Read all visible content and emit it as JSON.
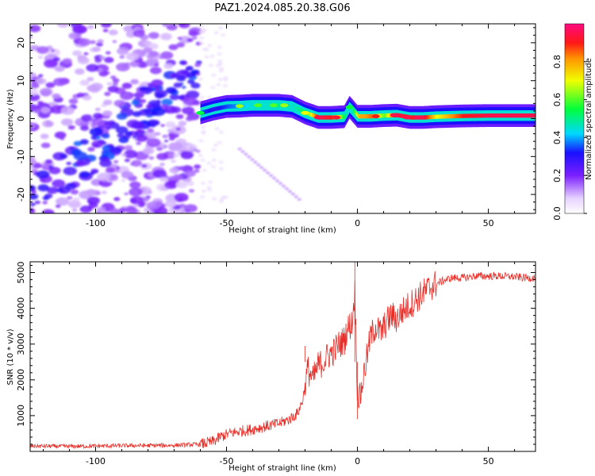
{
  "title": "PAZ1.2024.085.20.38.G06",
  "chart_data": [
    {
      "type": "heatmap",
      "xlabel": "Height of straight line (km)",
      "ylabel": "Frequency (Hz)",
      "xlim": [
        -125,
        68
      ],
      "ylim": [
        -25,
        25
      ],
      "x_ticks": [
        -100,
        -50,
        0,
        50
      ],
      "y_ticks": [
        -20,
        -10,
        0,
        10,
        20
      ],
      "colorbar": {
        "label": "Normalized spectral amplitude",
        "ticks": [
          0.0,
          0.2,
          0.4,
          0.6,
          0.8
        ],
        "range": [
          0,
          1
        ]
      },
      "ridge_frequency_track": {
        "x": [
          -60,
          -55,
          -50,
          -45,
          -40,
          -35,
          -30,
          -25,
          -20,
          -15,
          -10,
          -5,
          -3,
          0,
          5,
          10,
          15,
          20,
          25,
          30,
          40,
          50,
          60,
          68
        ],
        "freq": [
          1.5,
          2.5,
          3.2,
          3.3,
          3.5,
          3.5,
          3.5,
          3.2,
          1.5,
          0.3,
          0.3,
          0.5,
          3.0,
          0.6,
          0.6,
          0.8,
          0.9,
          0.3,
          0.3,
          0.5,
          0.7,
          0.8,
          0.8,
          0.8
        ],
        "amplitude": [
          0.35,
          0.3,
          0.35,
          0.4,
          0.45,
          0.45,
          0.5,
          0.45,
          0.55,
          0.95,
          0.9,
          0.5,
          0.4,
          0.75,
          0.85,
          0.6,
          0.95,
          0.9,
          0.95,
          0.7,
          0.9,
          0.95,
          0.95,
          0.95
        ]
      }
    },
    {
      "type": "line",
      "xlabel": "Height of straight line (km)",
      "ylabel": "SNR (10 * v/v)",
      "xlim": [
        -125,
        68
      ],
      "ylim": [
        0,
        5300
      ],
      "x_ticks": [
        -100,
        -50,
        0,
        50
      ],
      "y_ticks": [
        1000,
        2000,
        3000,
        4000,
        5000
      ],
      "color": "#e8302a",
      "x": [
        -125,
        -110,
        -90,
        -70,
        -60,
        -55,
        -52,
        -48,
        -45,
        -40,
        -35,
        -30,
        -26,
        -23,
        -21,
        -19,
        -17,
        -15,
        -13,
        -11,
        -9,
        -7,
        -5,
        -4,
        -2,
        -1,
        0,
        1,
        3,
        5,
        7,
        9,
        11,
        13,
        15,
        17,
        20,
        24,
        28,
        32,
        36,
        40,
        45,
        50,
        55,
        60,
        65,
        68
      ],
      "y": [
        150,
        140,
        160,
        170,
        200,
        280,
        420,
        520,
        560,
        620,
        700,
        780,
        900,
        1050,
        1400,
        2300,
        2000,
        2400,
        2500,
        2700,
        2800,
        3000,
        3100,
        3400,
        3600,
        4500,
        1600,
        1500,
        2400,
        3200,
        3500,
        3300,
        3600,
        3800,
        3700,
        3900,
        4100,
        4350,
        4600,
        4750,
        4850,
        4850,
        4900,
        4900,
        4900,
        4880,
        4850,
        4850
      ],
      "spikes": [
        {
          "x": -20,
          "y": 2950
        },
        {
          "x": -1,
          "y": 5300
        },
        {
          "x": 0,
          "y": 900
        }
      ]
    }
  ]
}
